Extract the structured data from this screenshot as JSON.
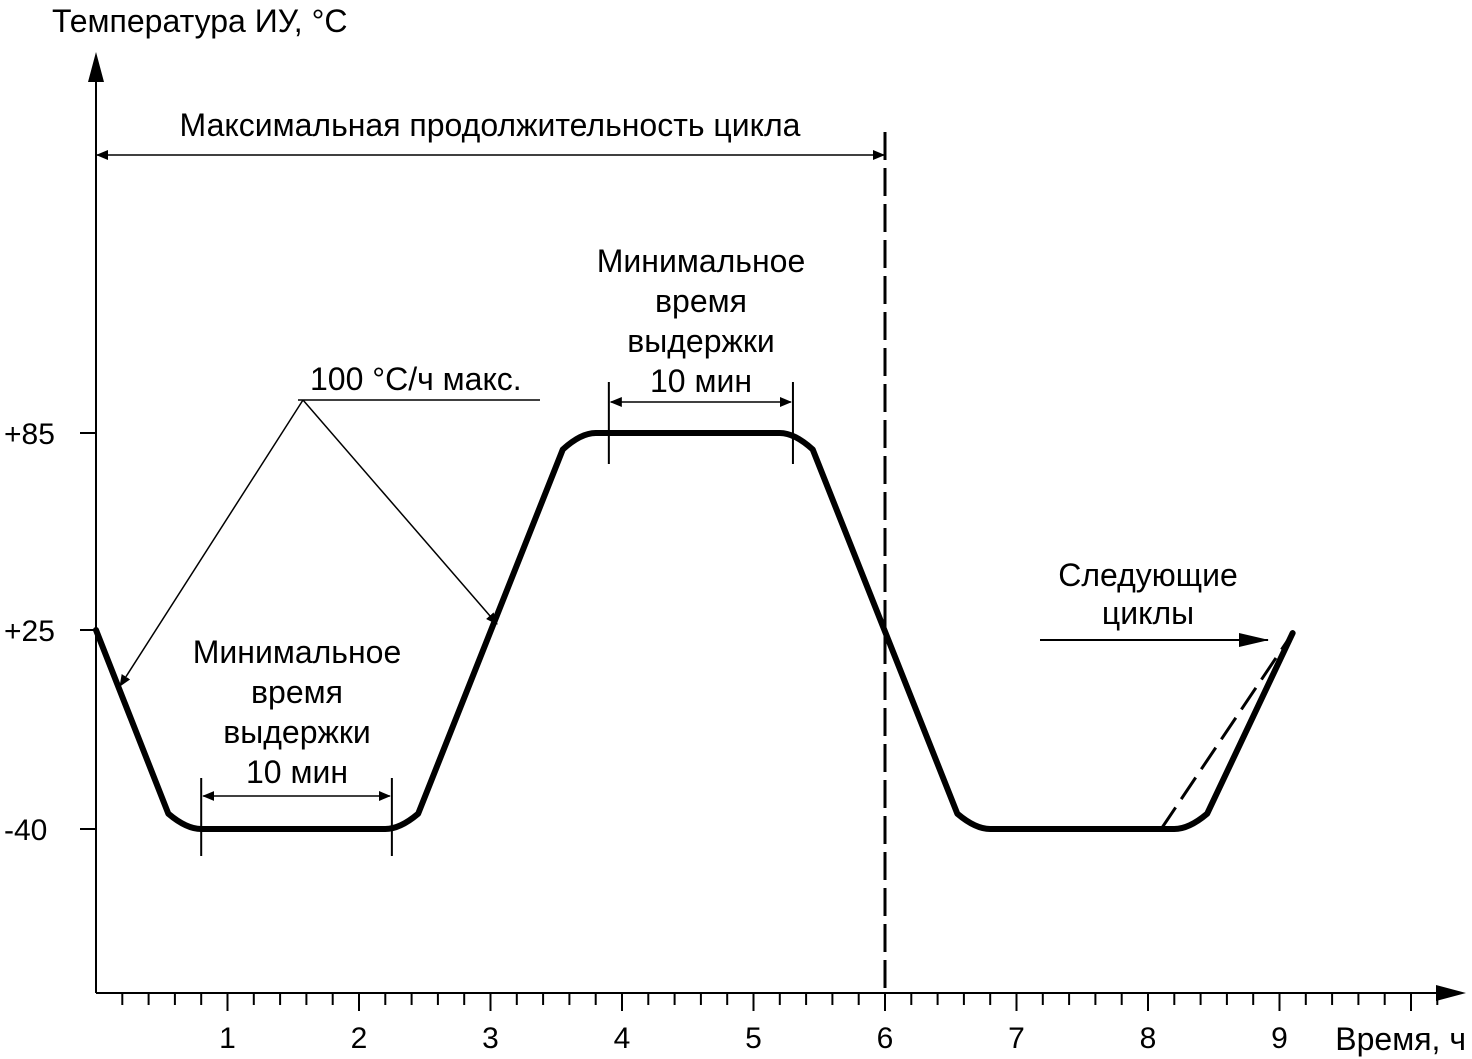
{
  "chart_data": {
    "type": "line",
    "title": "",
    "ylabel": "Температура ИУ, °С",
    "xlabel": "Время, ч",
    "xlim": [
      0,
      10.2
    ],
    "x_ticks": [
      1,
      2,
      3,
      4,
      5,
      6,
      7,
      8,
      9
    ],
    "x_tick_labels": [
      "1",
      "2",
      "3",
      "4",
      "5",
      "6",
      "7",
      "8",
      "9"
    ],
    "x_minor_step": 0.2,
    "y_ticks": [
      85,
      25,
      -40
    ],
    "y_tick_labels": [
      "+85",
      "+25",
      "-40"
    ],
    "series": [
      {
        "style": "solid",
        "x": [
          0.0,
          0.55,
          0.8,
          2.2,
          2.45,
          3.55,
          3.8,
          5.2,
          5.45,
          6.55,
          6.8,
          8.2,
          8.45,
          9.1
        ],
        "y": [
          25,
          -35,
          -40,
          -40,
          -35,
          80,
          85,
          85,
          80,
          -35,
          -40,
          -40,
          -35,
          24
        ]
      },
      {
        "style": "dashed",
        "x": [
          8.1,
          9.1
        ],
        "y": [
          -40,
          24
        ]
      }
    ],
    "markers": {
      "cycle_end_line": {
        "x": 6.0,
        "style": "dashed"
      }
    },
    "annotations": {
      "max_cycle": {
        "text": "Максимальная продолжительность цикла",
        "x_from": 0,
        "x_to": 6.0
      },
      "ramp_rate": {
        "text": "100 °С/ч макс."
      },
      "dwell_low": {
        "lines": [
          "Минимальное",
          "время",
          "выдержки",
          "10 мин"
        ],
        "x_from": 0.8,
        "x_to": 2.25
      },
      "dwell_high": {
        "lines": [
          "Минимальное",
          "время",
          "выдержки",
          "10 мин"
        ],
        "x_from": 3.9,
        "x_to": 5.3
      },
      "next_cycles": {
        "lines": [
          "Следующие",
          "циклы"
        ]
      }
    }
  }
}
